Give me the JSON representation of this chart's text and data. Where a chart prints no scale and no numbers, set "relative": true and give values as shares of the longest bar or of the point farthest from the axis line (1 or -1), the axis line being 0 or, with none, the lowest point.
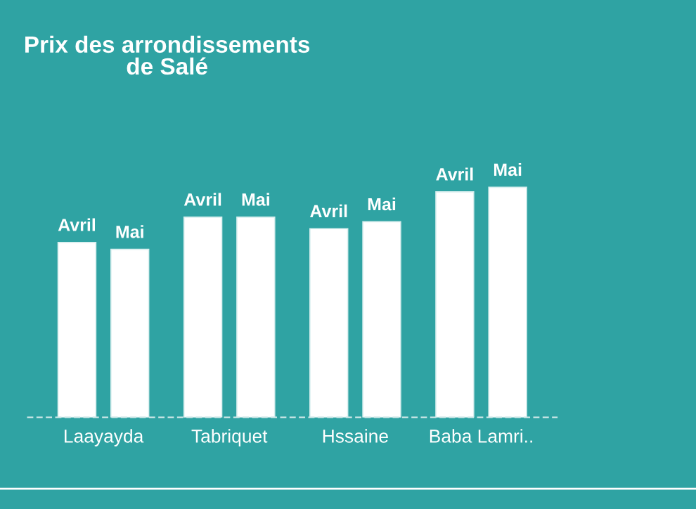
{
  "chart_data": {
    "type": "bar",
    "title": "Prix des arrondissements\nde Salé",
    "relative": true,
    "categories": [
      "Laayayda",
      "Tabriquet",
      "Hssaine",
      "Baba Lamri.."
    ],
    "series": [
      {
        "name": "Avril",
        "color": "#ffffff",
        "values": [
          0.76,
          0.87,
          0.82,
          0.98
        ]
      },
      {
        "name": "Mai",
        "color": "#ffffff",
        "values": [
          0.73,
          0.87,
          0.85,
          1.0
        ]
      }
    ],
    "legend": false,
    "grid": false
  }
}
